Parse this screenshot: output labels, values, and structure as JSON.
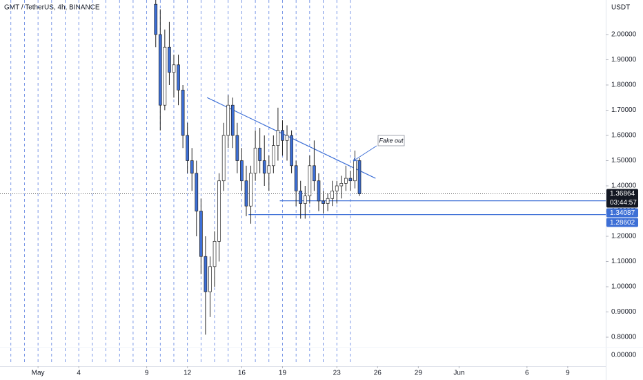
{
  "chart_data": {
    "type": "candlestick",
    "title": "GMT / TetherUS, 4h, BINANCE",
    "y_axis_label": "USDT",
    "up_color": "#ffffff",
    "down_color": "#3d6fd6",
    "wick_color": "#222222",
    "line_color": "#3d6fd6",
    "xlim": [
      -2.8,
      41.8
    ],
    "ylim": [
      0.685,
      2.137
    ],
    "xticks": [
      {
        "value": 0,
        "label": "May"
      },
      {
        "value": 3,
        "label": "4"
      },
      {
        "value": 8,
        "label": "9"
      },
      {
        "value": 11,
        "label": "12"
      },
      {
        "value": 15,
        "label": "16"
      },
      {
        "value": 18,
        "label": "19"
      },
      {
        "value": 22,
        "label": "23"
      },
      {
        "value": 25,
        "label": "26"
      },
      {
        "value": 28,
        "label": "29"
      },
      {
        "value": 31,
        "label": "Jun"
      },
      {
        "value": 36,
        "label": "6"
      },
      {
        "value": 39,
        "label": "9"
      }
    ],
    "yticks": [
      {
        "value": 0.8,
        "label": "0.80000"
      },
      {
        "value": 0.9,
        "label": "0.90000"
      },
      {
        "value": 1.0,
        "label": "1.00000"
      },
      {
        "value": 1.1,
        "label": "1.10000"
      },
      {
        "value": 1.2,
        "label": "1.20000"
      },
      {
        "value": 1.3,
        "label": "1.30000"
      },
      {
        "value": 1.4,
        "label": "1.40000"
      },
      {
        "value": 1.5,
        "label": "1.50000"
      },
      {
        "value": 1.6,
        "label": "1.60000"
      },
      {
        "value": 1.7,
        "label": "1.70000"
      },
      {
        "value": 1.8,
        "label": "1.80000"
      },
      {
        "value": 1.9,
        "label": "1.90000"
      },
      {
        "value": 2.0,
        "label": "2.00000"
      }
    ],
    "zero_tick": {
      "value": 0,
      "label": "0.00000"
    },
    "candles": {
      "x": [
        8.667,
        9,
        9.333,
        9.667,
        10,
        10.333,
        10.667,
        11,
        11.333,
        11.667,
        12,
        12.333,
        12.667,
        13,
        13.333,
        13.667,
        14,
        14.333,
        14.667,
        15,
        15.333,
        15.667,
        16,
        16.333,
        16.667,
        17,
        17.333,
        17.667,
        18,
        18.333,
        18.667,
        19,
        19.333,
        19.667,
        20,
        20.333,
        20.667,
        21,
        21.333,
        21.667,
        22,
        22.333,
        22.667,
        23,
        23.333,
        23.667
      ],
      "open": [
        2.12,
        2.0,
        1.72,
        1.95,
        1.85,
        1.88,
        1.78,
        1.6,
        1.5,
        1.45,
        1.3,
        1.12,
        0.98,
        1.08,
        1.18,
        1.42,
        1.6,
        1.72,
        1.6,
        1.5,
        1.42,
        1.32,
        1.45,
        1.55,
        1.5,
        1.45,
        1.48,
        1.56,
        1.62,
        1.58,
        1.6,
        1.48,
        1.38,
        1.33,
        1.36,
        1.48,
        1.42,
        1.34,
        1.33,
        1.35,
        1.38,
        1.4,
        1.41,
        1.43,
        1.42,
        1.5
      ],
      "high": [
        2.14,
        2.1,
        2.02,
        2.05,
        1.92,
        1.92,
        1.8,
        1.65,
        1.55,
        1.5,
        1.35,
        1.2,
        1.12,
        1.22,
        1.45,
        1.65,
        1.76,
        1.75,
        1.65,
        1.55,
        1.48,
        1.48,
        1.62,
        1.63,
        1.6,
        1.52,
        1.6,
        1.71,
        1.66,
        1.64,
        1.62,
        1.5,
        1.42,
        1.4,
        1.52,
        1.58,
        1.45,
        1.38,
        1.37,
        1.42,
        1.42,
        1.44,
        1.48,
        1.46,
        1.54,
        1.51
      ],
      "low": [
        1.95,
        1.62,
        1.7,
        1.8,
        1.75,
        1.72,
        1.55,
        1.45,
        1.38,
        1.2,
        1.05,
        0.81,
        0.88,
        1.0,
        1.1,
        1.38,
        1.55,
        1.55,
        1.45,
        1.38,
        1.28,
        1.25,
        1.42,
        1.45,
        1.4,
        1.38,
        1.45,
        1.5,
        1.52,
        1.5,
        1.45,
        1.32,
        1.27,
        1.27,
        1.33,
        1.38,
        1.3,
        1.29,
        1.3,
        1.32,
        1.33,
        1.35,
        1.38,
        1.38,
        1.39,
        1.36
      ],
      "close": [
        2.0,
        1.72,
        1.95,
        1.85,
        1.88,
        1.78,
        1.6,
        1.5,
        1.45,
        1.3,
        1.12,
        0.98,
        1.08,
        1.18,
        1.42,
        1.6,
        1.72,
        1.6,
        1.5,
        1.42,
        1.32,
        1.45,
        1.55,
        1.5,
        1.45,
        1.48,
        1.56,
        1.62,
        1.58,
        1.6,
        1.48,
        1.38,
        1.33,
        1.36,
        1.48,
        1.42,
        1.34,
        1.33,
        1.35,
        1.38,
        1.4,
        1.41,
        1.43,
        1.42,
        1.5,
        1.36864
      ]
    },
    "trendline": {
      "x": [
        12.45,
        24.85
      ],
      "values": [
        1.75,
        1.43
      ]
    },
    "levels": [
      {
        "value": 1.34087,
        "label": "1.34087",
        "x_start": 17.8
      },
      {
        "value": 1.28602,
        "label": "1.28602",
        "x_start": 15.5
      }
    ],
    "last_price": {
      "value": 1.36864,
      "label": "1.36864",
      "countdown": "03:44:57"
    },
    "annotation": "Fake out"
  }
}
